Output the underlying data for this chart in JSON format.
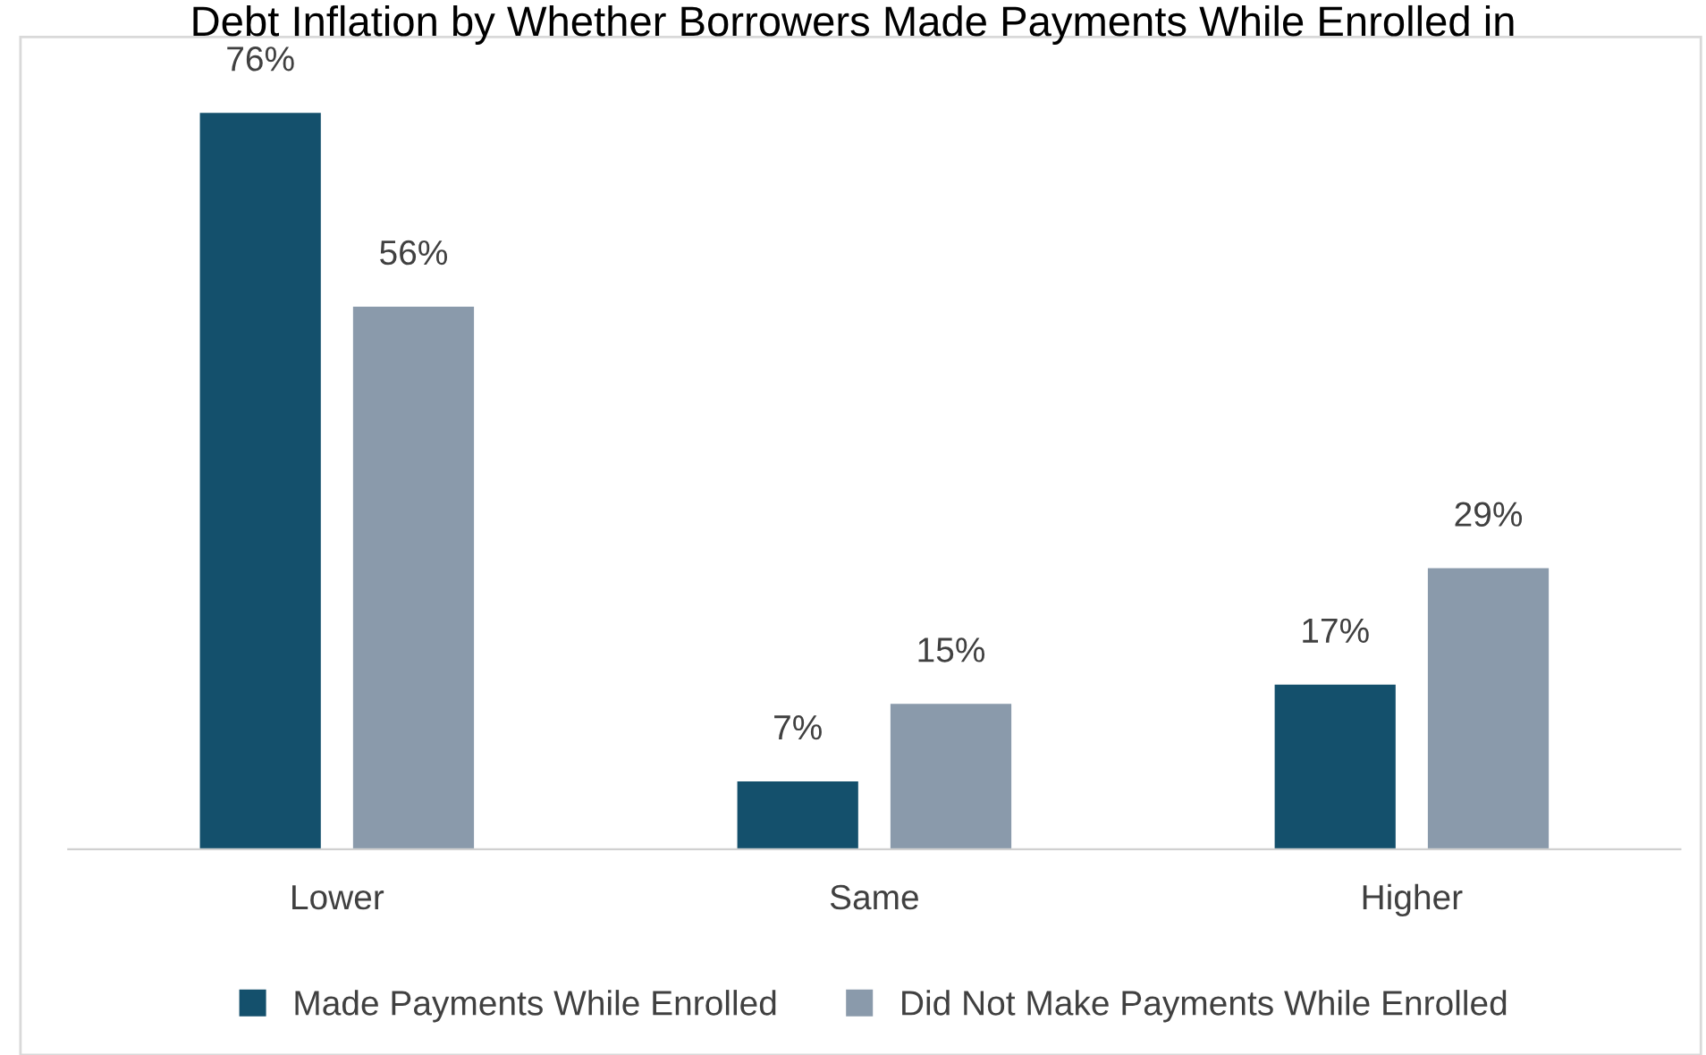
{
  "chart_data": {
    "type": "bar",
    "title": "Debt Inflation by Whether Borrowers Made Payments While Enrolled in",
    "categories": [
      "Lower",
      "Same",
      "Higher"
    ],
    "series": [
      {
        "name": "Made Payments While Enrolled",
        "color": "#14506c",
        "values": [
          76,
          7,
          17
        ],
        "value_labels": [
          "76%",
          "7%",
          "17%"
        ]
      },
      {
        "name": "Did Not Make Payments While Enrolled",
        "color": "#8a9aab",
        "values": [
          56,
          15,
          29
        ],
        "value_labels": [
          "56%",
          "15%",
          "29%"
        ]
      }
    ],
    "legend": "bottom",
    "grid": false
  }
}
